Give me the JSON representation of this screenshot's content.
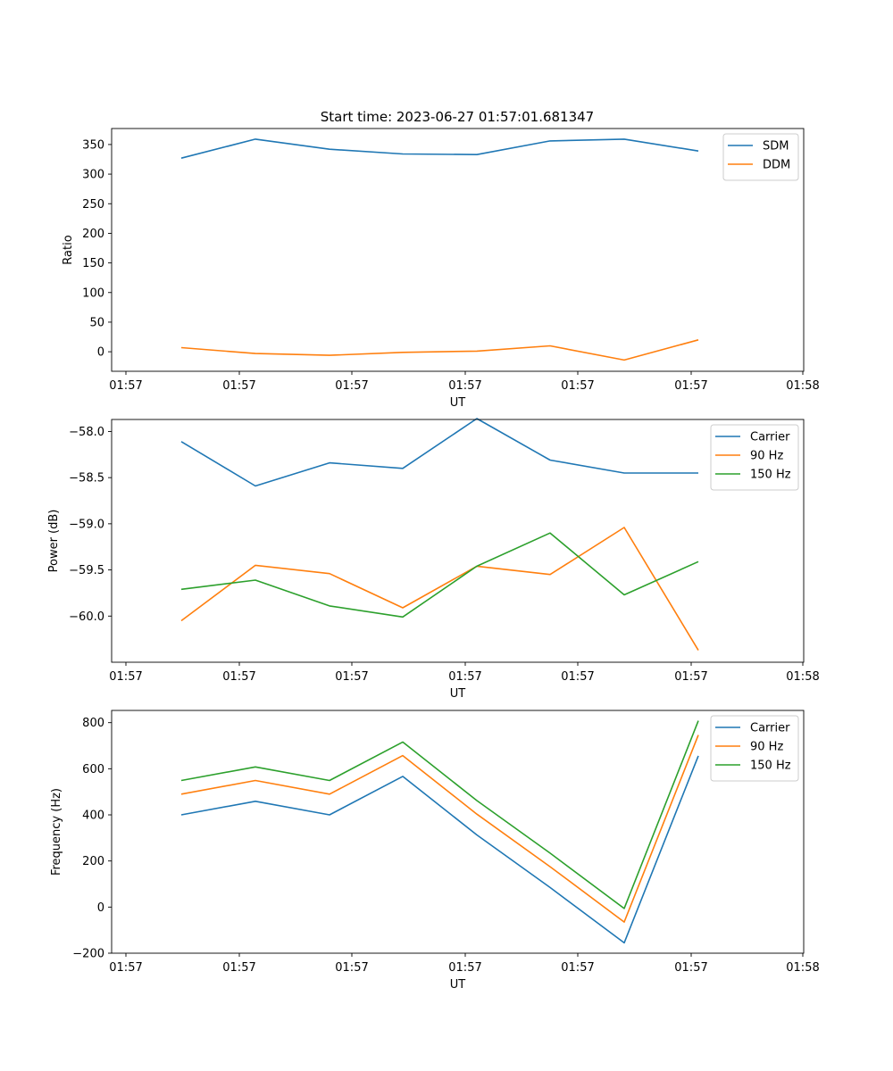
{
  "figure_title": "Start time: 2023-06-27 01:57:01.681347",
  "chart_data": [
    {
      "type": "line",
      "title": "Start time: 2023-06-27 01:57:01.681347",
      "xlabel": "UT",
      "ylabel": "Ratio",
      "x_tick_labels": [
        "01:57",
        "01:57",
        "01:57",
        "01:57",
        "01:57",
        "01:57",
        "01:58"
      ],
      "y_ticks": [
        0,
        50,
        100,
        150,
        200,
        250,
        300,
        350
      ],
      "y_tick_labels": [
        "0",
        "50",
        "100",
        "150",
        "200",
        "250",
        "300",
        "350"
      ],
      "ylim": [
        -33,
        377
      ],
      "legend_position": "top-right",
      "grid": false,
      "series": [
        {
          "name": "SDM",
          "color": "#1f77b4",
          "values": [
            327,
            359,
            342,
            334,
            333,
            356,
            359,
            339
          ]
        },
        {
          "name": "DDM",
          "color": "#ff7f0e",
          "values": [
            7,
            -3,
            -6,
            -1,
            1,
            10,
            -14,
            20
          ]
        }
      ]
    },
    {
      "type": "line",
      "xlabel": "UT",
      "ylabel": "Power (dB)",
      "x_tick_labels": [
        "01:57",
        "01:57",
        "01:57",
        "01:57",
        "01:57",
        "01:57",
        "01:58"
      ],
      "y_ticks": [
        -58.0,
        -58.5,
        -59.0,
        -59.5,
        -60.0
      ],
      "y_tick_labels": [
        "−58.0",
        "−58.5",
        "−59.0",
        "−59.5",
        "−60.0"
      ],
      "ylim": [
        -60.5,
        -57.87
      ],
      "legend_position": "top-right",
      "grid": false,
      "series": [
        {
          "name": "Carrier",
          "color": "#1f77b4",
          "values": [
            -58.11,
            -58.59,
            -58.34,
            -58.4,
            -57.86,
            -58.31,
            -58.45,
            -58.45
          ]
        },
        {
          "name": "90 Hz",
          "color": "#ff7f0e",
          "values": [
            -60.05,
            -59.45,
            -59.54,
            -59.91,
            -59.46,
            -59.55,
            -59.04,
            -60.37
          ]
        },
        {
          "name": "150 Hz",
          "color": "#2ca02c",
          "values": [
            -59.71,
            -59.61,
            -59.89,
            -60.01,
            -59.46,
            -59.1,
            -59.77,
            -59.41
          ]
        }
      ]
    },
    {
      "type": "line",
      "xlabel": "UT",
      "ylabel": "Frequency (Hz)",
      "x_tick_labels": [
        "01:57",
        "01:57",
        "01:57",
        "01:57",
        "01:57",
        "01:57",
        "01:58"
      ],
      "y_ticks": [
        800,
        600,
        400,
        200,
        0,
        -200
      ],
      "y_tick_labels": [
        "800",
        "600",
        "400",
        "200",
        "0",
        "−200"
      ],
      "ylim": [
        -200,
        853
      ],
      "legend_position": "top-right",
      "grid": false,
      "series": [
        {
          "name": "Carrier",
          "color": "#1f77b4",
          "values": [
            400,
            459,
            400,
            567,
            313,
            85,
            -155,
            656
          ]
        },
        {
          "name": "90 Hz",
          "color": "#ff7f0e",
          "values": [
            490,
            549,
            490,
            657,
            403,
            175,
            -65,
            746
          ]
        },
        {
          "name": "150 Hz",
          "color": "#2ca02c",
          "values": [
            549,
            608,
            549,
            716,
            462,
            234,
            -6,
            808
          ]
        }
      ]
    }
  ]
}
